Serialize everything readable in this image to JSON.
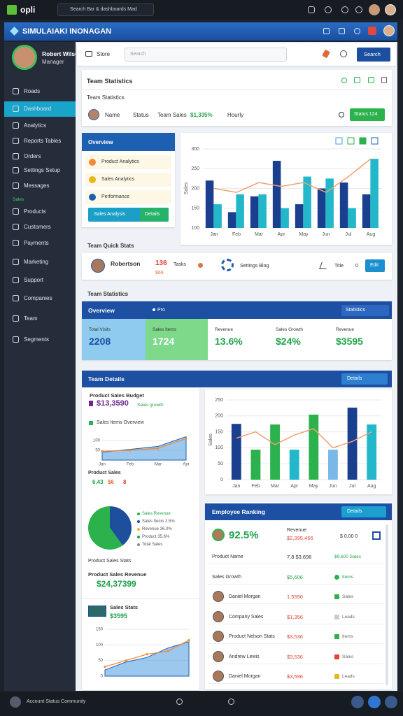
{
  "topbar": {
    "logo": "opli",
    "search": "Search Bar & dashboards Mad"
  },
  "header": {
    "title": "SIMULAIAKI INONAGAN"
  },
  "profile": {
    "name": "Robert Wilson",
    "role": "Manager"
  },
  "nav": [
    "Roads",
    "Dashboard",
    "Analytics",
    "Reports Tables",
    "Orders",
    "Settings Setup",
    "Messages",
    "Sales",
    "Products",
    "Customers",
    "Payments",
    "Marketing",
    "Support",
    "Companies",
    "Team",
    "Segments"
  ],
  "footer": {
    "user": "Account Status Community"
  },
  "toolbar": {
    "tab": "Store",
    "search": "Search",
    "button": "Search"
  },
  "team_card": {
    "title": "Team Statistics",
    "subtitle": "Team Statistics",
    "name": "Name",
    "status": "Status",
    "sales_label": "Team Sales",
    "sales": "$1,335%",
    "period": "Hourly",
    "button": "Status 124"
  },
  "overview": {
    "title": "Overview",
    "items": [
      "Product Analytics",
      "Sales Analytics",
      "Performance"
    ],
    "button": "Sales Analysis",
    "button2": "Details"
  },
  "chart1": {
    "y_title": "Sales",
    "ylim": [
      100,
      300
    ],
    "yticks": [
      100,
      150,
      200,
      250,
      300
    ],
    "categories": [
      "Jan",
      "Feb",
      "Mar",
      "Apr",
      "May",
      "Jun",
      "Jul",
      "Aug"
    ],
    "bars": [
      {
        "color": "#1a3f8f",
        "values": [
          220,
          140,
          180,
          270,
          160,
          200,
          215,
          185
        ]
      },
      {
        "color": "#22b8c9",
        "values": [
          160,
          185,
          185,
          150,
          230,
          225,
          150,
          275
        ]
      }
    ],
    "line": {
      "color": "#f0a070",
      "values": [
        200,
        190,
        215,
        205,
        215,
        190,
        230,
        275
      ]
    }
  },
  "quick_label": "Team Quick Stats",
  "quick": {
    "name": "Robertson",
    "count": "136",
    "count_label": "Tasks",
    "sub": "$69",
    "settings": "Settings Blog",
    "title": "Title",
    "zero": "0",
    "button": "Edit"
  },
  "stats_label": "Team Statistics",
  "stats": {
    "title": "Overview",
    "tag": "Pro",
    "dropdown": "Statistics",
    "tiles": [
      {
        "label": "Total Visits",
        "value": "2208"
      },
      {
        "label": "Sales Items",
        "value": "1724"
      },
      {
        "label": "Revenue",
        "value": "13.6%"
      },
      {
        "label": "Sales Growth",
        "value": "$24%"
      },
      {
        "label": "Revenue",
        "value": "$3595"
      }
    ]
  },
  "details": {
    "title": "Team Details",
    "button": "Details"
  },
  "budget": {
    "title": "Product Sales Budget",
    "value": "$13,3590",
    "sub": "Sales growth"
  },
  "mini1": {
    "title": "Sales Items Overview",
    "ylim": [
      0,
      150
    ],
    "yticks": [
      50,
      100
    ],
    "categories": [
      "Jan",
      "Feb",
      "Mar",
      "Apr"
    ],
    "area": [
      40,
      55,
      70,
      120
    ],
    "line": [
      45,
      50,
      60,
      110
    ]
  },
  "product_sales": {
    "title": "Product Sales",
    "items": [
      "6.43",
      "$6",
      "8"
    ]
  },
  "pie": {
    "values": [
      40,
      60
    ],
    "colors": [
      "#1d4f9c",
      "#2bb24c"
    ],
    "legend": [
      "Sales Revenue",
      "Sales Items 2.5%",
      "Revenue 36.0%",
      "Product 35.6%",
      "Total Sales"
    ],
    "caption": "Product Sales Stats"
  },
  "revenue": {
    "title": "Product Sales Revenue",
    "value": "$24,37399"
  },
  "mini2": {
    "title": "Sales Stats",
    "value": "$3595",
    "ylim": [
      0,
      150
    ],
    "yticks": [
      0,
      50,
      100,
      150
    ],
    "area": [
      20,
      45,
      60,
      90,
      110
    ],
    "line": [
      30,
      50,
      70,
      80,
      115
    ]
  },
  "chart2": {
    "y_title": "Sales",
    "ylim": [
      0,
      250
    ],
    "yticks": [
      0,
      50,
      100,
      150,
      200,
      250
    ],
    "categories": [
      "Jan",
      "Feb",
      "Mar",
      "Apr",
      "May",
      "Jun",
      "Jul",
      "Aug"
    ],
    "values": [
      175,
      94,
      173,
      94,
      204,
      94,
      226,
      173
    ],
    "colors": [
      "#1a3f8f",
      "#2bb24c",
      "#2bb24c",
      "#22b8c9",
      "#2bb24c",
      "#7ab8e8",
      "#1a3f8f",
      "#22b8c9"
    ],
    "line": {
      "color": "#f0a070",
      "values": [
        130,
        150,
        110,
        140,
        160,
        100,
        120,
        150
      ]
    }
  },
  "ranking": {
    "title": "Employee Ranking",
    "button": "Details",
    "score": "92.5%",
    "rev_label": "Revenue",
    "rev": "$2,395,456",
    "misc": "$ 0.00 0",
    "rows": [
      {
        "name": "Product Name",
        "value": "7.8 $3.696",
        "tag": "$9,600 Sales"
      },
      {
        "name": "Sales Growth",
        "value": "$5,606",
        "tag": "Items"
      },
      {
        "name": "Daniel Morgan",
        "value": "1,5596",
        "tag": "Sales"
      },
      {
        "name": "Company Sales",
        "value": "$1,356",
        "tag": "Leads"
      },
      {
        "name": "Product Nelson Stats",
        "value": "$3,536",
        "tag": "Items"
      },
      {
        "name": "Andrew Lewis",
        "value": "$3,536",
        "tag": "Sales"
      },
      {
        "name": "Daniel Morgan",
        "value": "$3,596",
        "tag": "Leads"
      }
    ]
  }
}
